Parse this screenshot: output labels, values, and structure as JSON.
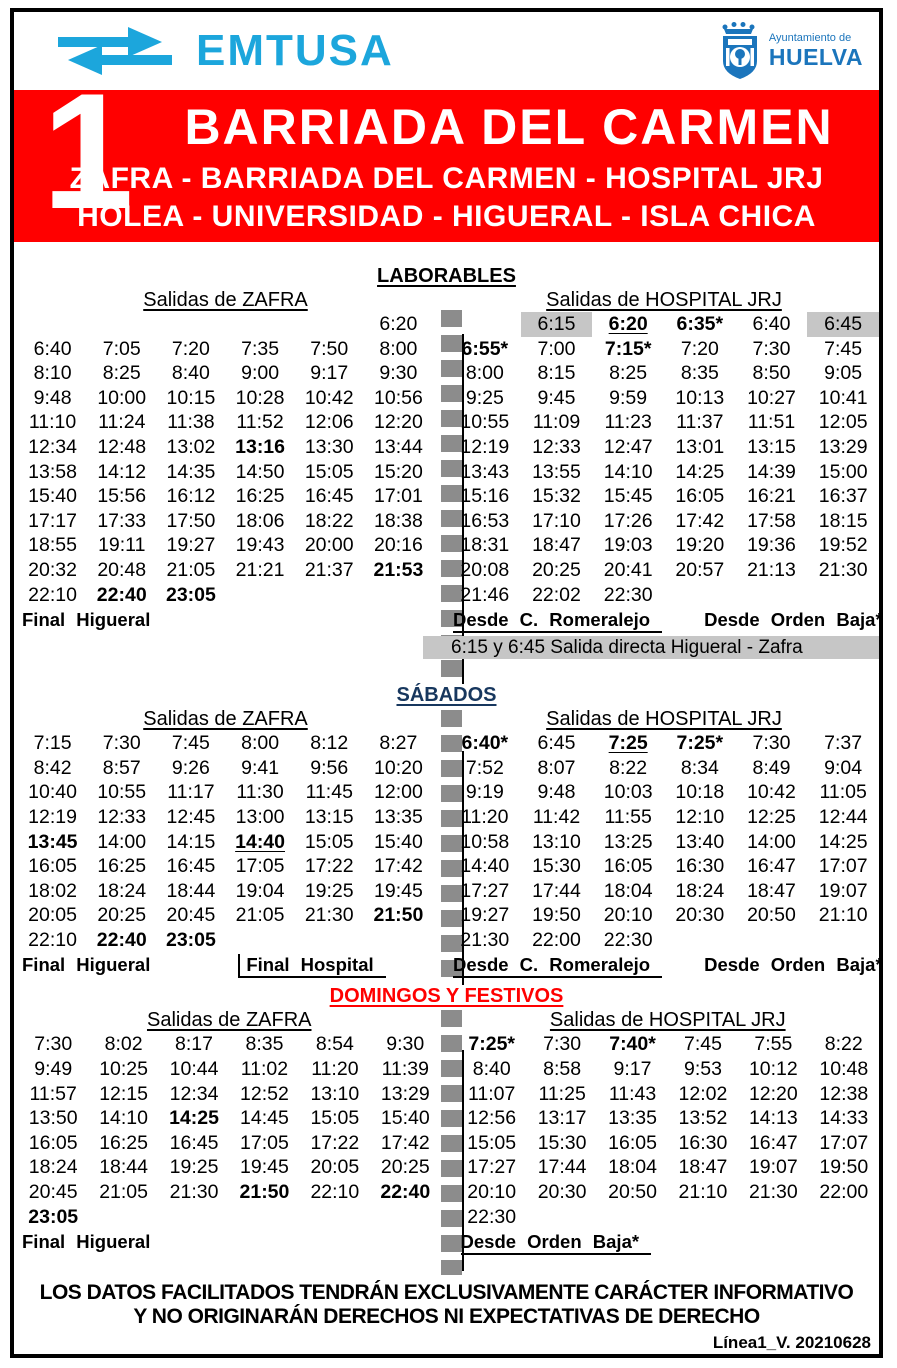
{
  "header": {
    "emtusa_logo_text": "EMTUSA",
    "huelva_logo": {
      "line1": "Ayuntamiento de",
      "line2": "HUELVA"
    }
  },
  "banner": {
    "line_number": "1",
    "title": "BARRIADA DEL CARMEN",
    "route_line1": "ZAFRA - BARRIADA DEL CARMEN - HOSPITAL JRJ",
    "route_line2": "HOLEA - UNIVERSIDAD - HIGUERAL - ISLA CHICA"
  },
  "colors": {
    "banner_red": "#FF0000",
    "emtusa_blue": "#1CA6DC",
    "huelva_blue": "#1B75BC",
    "sabados_navy": "#17375E",
    "domingos_red": "#FF0000",
    "divider_gray": "#8C8C8C",
    "highlight_gray": "#C6C6C6"
  },
  "sections": [
    {
      "id": "laborables",
      "title": "LABORABLES",
      "color": "#000000",
      "zafra": {
        "title": "Salidas de ZAFRA",
        "rows": [
          [
            "",
            "",
            "",
            "",
            "",
            "6:20"
          ],
          [
            "6:40",
            "7:05",
            "7:20",
            "7:35",
            "7:50",
            "8:00"
          ],
          [
            "8:10",
            "8:25",
            "8:40",
            "9:00",
            "9:17",
            "9:30"
          ],
          [
            "9:48",
            "10:00",
            "10:15",
            "10:28",
            "10:42",
            "10:56"
          ],
          [
            "11:10",
            "11:24",
            "11:38",
            "11:52",
            "12:06",
            "12:20"
          ],
          [
            "12:34",
            "12:48",
            "13:02",
            {
              "t": "13:16",
              "b": true
            },
            "13:30",
            "13:44"
          ],
          [
            "13:58",
            "14:12",
            "14:35",
            "14:50",
            "15:05",
            "15:20"
          ],
          [
            "15:40",
            "15:56",
            "16:12",
            "16:25",
            "16:45",
            "17:01"
          ],
          [
            "17:17",
            "17:33",
            "17:50",
            "18:06",
            "18:22",
            "18:38"
          ],
          [
            "18:55",
            "19:11",
            "19:27",
            "19:43",
            "20:00",
            "20:16"
          ],
          [
            "20:32",
            "20:48",
            "21:05",
            "21:21",
            "21:37",
            {
              "t": "21:53",
              "b": true
            }
          ],
          [
            "22:10",
            {
              "t": "22:40",
              "b": true
            },
            {
              "t": "23:05",
              "b": true
            },
            "",
            "",
            ""
          ]
        ],
        "footer": [
          {
            "t": "Final Higueral",
            "b": true
          }
        ]
      },
      "hospital": {
        "title": "Salidas de HOSPITAL JRJ",
        "rows": [
          [
            "",
            {
              "t": "6:15",
              "g": true
            },
            {
              "t": "6:20",
              "b": true,
              "u": true
            },
            {
              "t": "6:35*",
              "b": true
            },
            "6:40",
            {
              "t": "6:45",
              "g": true
            }
          ],
          [
            {
              "t": "6:55*",
              "b": true
            },
            "7:00",
            {
              "t": "7:15*",
              "b": true
            },
            "7:20",
            "7:30",
            "7:45"
          ],
          [
            "8:00",
            "8:15",
            "8:25",
            "8:35",
            "8:50",
            "9:05"
          ],
          [
            "9:25",
            "9:45",
            "9:59",
            "10:13",
            "10:27",
            "10:41"
          ],
          [
            "10:55",
            "11:09",
            "11:23",
            "11:37",
            "11:51",
            "12:05"
          ],
          [
            "12:19",
            "12:33",
            "12:47",
            "13:01",
            "13:15",
            "13:29"
          ],
          [
            "13:43",
            "13:55",
            "14:10",
            "14:25",
            "14:39",
            "15:00"
          ],
          [
            "15:16",
            "15:32",
            "15:45",
            "16:05",
            "16:21",
            "16:37"
          ],
          [
            "16:53",
            "17:10",
            "17:26",
            "17:42",
            "17:58",
            "18:15"
          ],
          [
            "18:31",
            "18:47",
            "19:03",
            "19:20",
            "19:36",
            "19:52"
          ],
          [
            "20:08",
            "20:25",
            "20:41",
            "20:57",
            "21:13",
            "21:30"
          ],
          [
            "21:46",
            "22:02",
            "22:30",
            "",
            "",
            ""
          ]
        ],
        "footer": [
          {
            "t": "Desde C. Romeralejo",
            "b": true,
            "u": true
          },
          {
            "t": "Desde Orden Baja*",
            "b": true
          }
        ],
        "note": "6:15 y 6:45 Salida directa Higueral - Zafra"
      }
    },
    {
      "id": "sabados",
      "title": "SÁBADOS",
      "color": "#17375E",
      "zafra": {
        "title": "Salidas de ZAFRA",
        "rows": [
          [
            "7:15",
            "7:30",
            "7:45",
            "8:00",
            "8:12",
            "8:27"
          ],
          [
            "8:42",
            "8:57",
            "9:26",
            "9:41",
            "9:56",
            "10:20"
          ],
          [
            "10:40",
            "10:55",
            "11:17",
            "11:30",
            "11:45",
            "12:00"
          ],
          [
            "12:19",
            "12:33",
            "12:45",
            "13:00",
            "13:15",
            "13:35"
          ],
          [
            {
              "t": "13:45",
              "b": true
            },
            "14:00",
            "14:15",
            {
              "t": "14:40",
              "b": true,
              "u": true
            },
            "15:05",
            "15:40"
          ],
          [
            "16:05",
            "16:25",
            "16:45",
            "17:05",
            "17:22",
            "17:42"
          ],
          [
            "18:02",
            "18:24",
            "18:44",
            "19:04",
            "19:25",
            "19:45"
          ],
          [
            "20:05",
            "20:25",
            "20:45",
            "21:05",
            "21:30",
            {
              "t": "21:50",
              "b": true
            }
          ],
          [
            "22:10",
            {
              "t": "22:40",
              "b": true
            },
            {
              "t": "23:05",
              "b": true
            },
            "",
            "",
            ""
          ]
        ],
        "footer": [
          {
            "t": "Final Higueral",
            "b": true
          },
          {
            "t": "Final Hospital",
            "b": true,
            "u": true,
            "bar": true
          }
        ]
      },
      "hospital": {
        "title": "Salidas de HOSPITAL JRJ",
        "rows": [
          [
            {
              "t": "6:40*",
              "b": true
            },
            "6:45",
            {
              "t": "7:25",
              "b": true,
              "u": true
            },
            {
              "t": "7:25*",
              "b": true
            },
            "7:30",
            "7:37"
          ],
          [
            "7:52",
            "8:07",
            "8:22",
            "8:34",
            "8:49",
            "9:04"
          ],
          [
            "9:19",
            "9:48",
            "10:03",
            "10:18",
            "10:42",
            "11:05"
          ],
          [
            "11:20",
            "11:42",
            "11:55",
            "12:10",
            "12:25",
            "12:44"
          ],
          [
            "10:58",
            "13:10",
            "13:25",
            "13:40",
            "14:00",
            "14:25"
          ],
          [
            "14:40",
            "15:30",
            "16:05",
            "16:30",
            "16:47",
            "17:07"
          ],
          [
            "17:27",
            "17:44",
            "18:04",
            "18:24",
            "18:47",
            "19:07"
          ],
          [
            "19:27",
            "19:50",
            "20:10",
            "20:30",
            "20:50",
            "21:10"
          ],
          [
            "21:30",
            "22:00",
            "22:30",
            "",
            "",
            ""
          ]
        ],
        "footer": [
          {
            "t": "Desde C. Romeralejo",
            "b": true,
            "u": true
          },
          {
            "t": "Desde Orden Baja*",
            "b": true
          }
        ]
      }
    },
    {
      "id": "domingos",
      "title": "DOMINGOS Y FESTIVOS",
      "color": "#FF0000",
      "zafra": {
        "title": "Salidas de ZAFRA",
        "rows": [
          [
            "7:30",
            "8:02",
            "8:17",
            "8:35",
            "8:54",
            "9:30"
          ],
          [
            "9:49",
            "10:25",
            "10:44",
            "11:02",
            "11:20",
            "11:39"
          ],
          [
            "11:57",
            "12:15",
            "12:34",
            "12:52",
            "13:10",
            "13:29"
          ],
          [
            "13:50",
            "14:10",
            {
              "t": "14:25",
              "b": true
            },
            "14:45",
            "15:05",
            "15:40"
          ],
          [
            "16:05",
            "16:25",
            "16:45",
            "17:05",
            "17:22",
            "17:42"
          ],
          [
            "18:24",
            "18:44",
            "19:25",
            "19:45",
            "20:05",
            "20:25"
          ],
          [
            "20:45",
            "21:05",
            "21:30",
            {
              "t": "21:50",
              "b": true
            },
            "22:10",
            {
              "t": "22:40",
              "b": true
            }
          ],
          [
            {
              "t": "23:05",
              "b": true
            },
            "",
            "",
            "",
            "",
            ""
          ]
        ],
        "footer": [
          {
            "t": "Final Higueral",
            "b": true
          }
        ]
      },
      "hospital": {
        "title": "Salidas de HOSPITAL JRJ",
        "rows": [
          [
            {
              "t": "7:25*",
              "b": true
            },
            "7:30",
            {
              "t": "7:40*",
              "b": true
            },
            "7:45",
            "7:55",
            "8:22"
          ],
          [
            "8:40",
            "8:58",
            "9:17",
            "9:53",
            "10:12",
            "10:48"
          ],
          [
            "11:07",
            "11:25",
            "11:43",
            "12:02",
            "12:20",
            "12:38"
          ],
          [
            "12:56",
            "13:17",
            "13:35",
            "13:52",
            "14:13",
            "14:33"
          ],
          [
            "15:05",
            "15:30",
            "16:05",
            "16:30",
            "16:47",
            "17:07"
          ],
          [
            "17:27",
            "17:44",
            "18:04",
            "18:47",
            "19:07",
            "19:50"
          ],
          [
            "20:10",
            "20:30",
            "20:50",
            "21:10",
            "21:30",
            "22:00"
          ],
          [
            "22:30",
            "",
            "",
            "",
            "",
            ""
          ]
        ],
        "footer": [
          {
            "t": "Desde Orden Baja*",
            "b": true,
            "u": true
          }
        ]
      }
    }
  ],
  "disclaimer": {
    "line1": "LOS DATOS FACILITADOS TENDRÁN EXCLUSIVAMENTE CARÁCTER INFORMATIVO",
    "line2": "Y NO ORIGINARÁN DERECHOS NI EXPECTATIVAS DE DERECHO"
  },
  "version": "Línea1_V. 20210628"
}
